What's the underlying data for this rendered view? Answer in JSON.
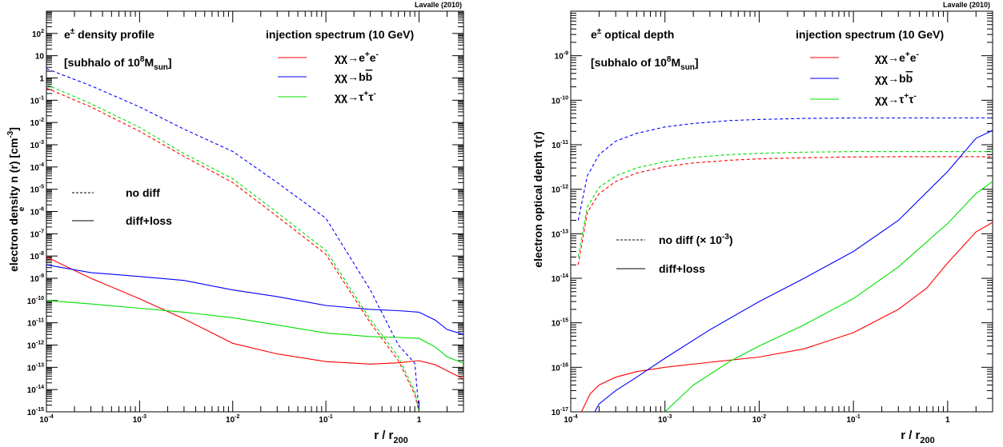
{
  "chart_data": [
    {
      "type": "line",
      "credit": "Lavalle (2010)",
      "xlabel": "r / r",
      "xlabel_sub": "200",
      "ylabel": "electron density  n (r)  [cm",
      "ylabel_sub": "e",
      "ylabel_sup": "-3",
      "ylabel_end": "]",
      "xscale": "log",
      "yscale": "log",
      "xlim": [
        0.0001,
        3
      ],
      "ylim": [
        1e-15,
        1000
      ],
      "x_ticks": [
        0.0001,
        0.001,
        0.01,
        0.1,
        1
      ],
      "x_tick_labels": [
        "10^-4",
        "10^-3",
        "10^-2",
        "10^-1",
        "1"
      ],
      "y_ticks": [
        1e-15,
        1e-14,
        1e-13,
        1e-12,
        1e-11,
        1e-10,
        1e-09,
        1e-08,
        1e-07,
        1e-06,
        1e-05,
        0.0001,
        0.001,
        0.01,
        0.1,
        1,
        10,
        100
      ],
      "y_tick_labels": [
        "10^-15",
        "10^-14",
        "10^-13",
        "10^-12",
        "10^-11",
        "10^-10",
        "10^-9",
        "10^-8",
        "10^-7",
        "10^-6",
        "10^-5",
        "10^-4",
        "10^-3",
        "10^-2",
        "10^-1",
        "1",
        "10",
        "10^2"
      ],
      "title_line1_prefix": "e",
      "title_line1_sup": "±",
      "title_line1_rest": " density profile",
      "title_line2_prefix": "[subhalo of 10",
      "title_line2_sup": "8",
      "title_line2_mid": "M",
      "title_line2_sub": "sun",
      "title_line2_end": "]",
      "legend_title": "injection spectrum (10 GeV)",
      "legend_entries": [
        {
          "color": "#ff0000",
          "label_main": "χχ→e",
          "label_sup1": "+",
          "label_mid": "e",
          "label_sup2": "-"
        },
        {
          "color": "#0000ff",
          "label_main": "χχ→b",
          "label_over": "b"
        },
        {
          "color": "#00e000",
          "label_main": "χχ→τ",
          "label_sup1": "+",
          "label_mid": "τ",
          "label_sup2": "-"
        }
      ],
      "style_legend": [
        {
          "dash": true,
          "label": "no diff"
        },
        {
          "dash": false,
          "label": "diff+loss"
        }
      ],
      "series": [
        {
          "channel": "ee",
          "style": "no diff",
          "color": "#ff0000",
          "dashed": true,
          "x": [
            0.0001,
            0.0003,
            0.001,
            0.003,
            0.01,
            0.03,
            0.1,
            0.3,
            0.6,
            0.9,
            1.0
          ],
          "y": [
            0.35,
            0.05,
            0.004,
            0.0003,
            2e-05,
            6e-07,
            1.2e-08,
            1e-11,
            2e-13,
            6e-15,
            1e-15
          ]
        },
        {
          "channel": "bb",
          "style": "no diff",
          "color": "#0000ff",
          "dashed": true,
          "x": [
            0.0001,
            0.0003,
            0.001,
            0.003,
            0.01,
            0.03,
            0.1,
            0.3,
            0.6,
            0.9,
            1.0
          ],
          "y": [
            2.6,
            0.45,
            0.05,
            0.005,
            0.0005,
            2e-05,
            5e-07,
            3e-10,
            1e-12,
            1.5e-13,
            1e-15
          ]
        },
        {
          "channel": "tautau",
          "style": "no diff",
          "color": "#00e000",
          "dashed": true,
          "x": [
            0.0001,
            0.0003,
            0.001,
            0.003,
            0.01,
            0.03,
            0.1,
            0.3,
            0.6,
            0.9,
            1.0
          ],
          "y": [
            0.5,
            0.07,
            0.006,
            0.0004,
            3e-05,
            9e-07,
            1.8e-08,
            1.4e-11,
            3e-13,
            8e-15,
            1e-15
          ]
        },
        {
          "channel": "ee",
          "style": "diff+loss",
          "color": "#ff0000",
          "dashed": false,
          "x": [
            0.0001,
            0.0003,
            0.001,
            0.003,
            0.01,
            0.03,
            0.1,
            0.3,
            0.6,
            1.0,
            1.5,
            2.0,
            3.0
          ],
          "y": [
            9e-09,
            1e-09,
            1.2e-10,
            1.5e-11,
            1.2e-12,
            4e-13,
            1.8e-13,
            1.4e-13,
            1.6e-13,
            2e-13,
            1.3e-13,
            7e-14,
            3e-14
          ]
        },
        {
          "channel": "bb",
          "style": "diff+loss",
          "color": "#0000ff",
          "dashed": false,
          "x": [
            0.0001,
            0.0003,
            0.001,
            0.003,
            0.01,
            0.03,
            0.1,
            0.3,
            0.6,
            1.0,
            1.5,
            2.0,
            3.0
          ],
          "y": [
            4e-09,
            1.8e-09,
            1.2e-09,
            8e-10,
            3e-10,
            1.5e-10,
            6e-11,
            4e-11,
            3.5e-11,
            3e-11,
            1.3e-11,
            5e-12,
            3e-12
          ]
        },
        {
          "channel": "tautau",
          "style": "diff+loss",
          "color": "#00e000",
          "dashed": false,
          "x": [
            0.0001,
            0.0003,
            0.001,
            0.003,
            0.01,
            0.03,
            0.1,
            0.3,
            0.6,
            1.0,
            1.5,
            2.0,
            3.0
          ],
          "y": [
            1e-10,
            7e-11,
            4.5e-11,
            3e-11,
            1.7e-11,
            8e-12,
            3.5e-12,
            2.4e-12,
            2.2e-12,
            2e-12,
            8e-13,
            3e-13,
            1.5e-13
          ]
        }
      ]
    },
    {
      "type": "line",
      "credit": "Lavalle (2010)",
      "xlabel": "r / r",
      "xlabel_sub": "200",
      "ylabel": "electron optical depth  τ(r)",
      "xscale": "log",
      "yscale": "log",
      "xlim": [
        0.0001,
        3
      ],
      "ylim": [
        1e-17,
        1e-08
      ],
      "x_ticks": [
        0.0001,
        0.001,
        0.01,
        0.1,
        1
      ],
      "x_tick_labels": [
        "10^-4",
        "10^-3",
        "10^-2",
        "10^-1",
        "1"
      ],
      "y_ticks": [
        1e-17,
        1e-16,
        1e-15,
        1e-14,
        1e-13,
        1e-12,
        1e-11,
        1e-10,
        1e-09
      ],
      "y_tick_labels": [
        "10^-17",
        "10^-16",
        "10^-15",
        "10^-14",
        "10^-13",
        "10^-12",
        "10^-11",
        "10^-10",
        "10^-9"
      ],
      "title_line1_prefix": "e",
      "title_line1_sup": "±",
      "title_line1_rest": " optical depth",
      "title_line2_prefix": "[subhalo of 10",
      "title_line2_sup": "8",
      "title_line2_mid": "M",
      "title_line2_sub": "sun",
      "title_line2_end": "]",
      "legend_title": "injection spectrum (10 GeV)",
      "legend_entries": [
        {
          "color": "#ff0000",
          "label_main": "χχ→e",
          "label_sup1": "+",
          "label_mid": "e",
          "label_sup2": "-"
        },
        {
          "color": "#0000ff",
          "label_main": "χχ→b",
          "label_over": "b"
        },
        {
          "color": "#00e000",
          "label_main": "χχ→τ",
          "label_sup1": "+",
          "label_mid": "τ",
          "label_sup2": "-"
        }
      ],
      "style_legend": [
        {
          "dash": true,
          "label": "no diff (× 10",
          "label_sup": "-3",
          "label_end": ")"
        },
        {
          "dash": false,
          "label": "diff+loss"
        }
      ],
      "series": [
        {
          "channel": "ee",
          "style": "no diff",
          "color": "#ff0000",
          "dashed": true,
          "x": [
            0.00012,
            0.00015,
            0.0002,
            0.0003,
            0.0005,
            0.001,
            0.002,
            0.005,
            0.01,
            0.03,
            0.1,
            0.3,
            1.0,
            3.0
          ],
          "y": [
            2e-14,
            3e-13,
            8e-13,
            1.5e-12,
            2.3e-12,
            3.2e-12,
            3.9e-12,
            4.5e-12,
            4.8e-12,
            5.1e-12,
            5.3e-12,
            5.4e-12,
            5.4e-12,
            5.4e-12
          ]
        },
        {
          "channel": "bb",
          "style": "no diff",
          "color": "#0000ff",
          "dashed": true,
          "x": [
            0.00012,
            0.00015,
            0.0002,
            0.0003,
            0.0005,
            0.001,
            0.002,
            0.005,
            0.01,
            0.03,
            0.1,
            0.3,
            1.0,
            3.0
          ],
          "y": [
            2e-13,
            2e-12,
            6e-12,
            1.2e-11,
            1.8e-11,
            2.5e-11,
            3e-11,
            3.5e-11,
            3.7e-11,
            3.9e-11,
            4e-11,
            4e-11,
            4e-11,
            4e-11
          ]
        },
        {
          "channel": "tautau",
          "style": "no diff",
          "color": "#00e000",
          "dashed": true,
          "x": [
            0.00012,
            0.00015,
            0.0002,
            0.0003,
            0.0005,
            0.001,
            0.002,
            0.005,
            0.01,
            0.03,
            0.1,
            0.3,
            1.0,
            3.0
          ],
          "y": [
            3e-14,
            4e-13,
            1.1e-12,
            2e-12,
            3e-12,
            4.2e-12,
            5.2e-12,
            6e-12,
            6.4e-12,
            6.8e-12,
            7e-12,
            7e-12,
            7e-12,
            7e-12
          ]
        },
        {
          "channel": "ee",
          "style": "diff+loss",
          "color": "#ff0000",
          "dashed": false,
          "x": [
            0.00013,
            0.00016,
            0.0002,
            0.0003,
            0.0005,
            0.001,
            0.003,
            0.01,
            0.03,
            0.1,
            0.3,
            0.6,
            1.0,
            2.0,
            3.0
          ],
          "y": [
            1e-17,
            2.5e-17,
            4e-17,
            6e-17,
            8e-17,
            1e-16,
            1.3e-16,
            1.7e-16,
            2.6e-16,
            6e-16,
            2e-15,
            6e-15,
            2.2e-14,
            1.1e-13,
            1.8e-13
          ]
        },
        {
          "channel": "bb",
          "style": "diff+loss",
          "color": "#0000ff",
          "dashed": false,
          "x": [
            0.00018,
            0.0002,
            0.0003,
            0.0005,
            0.001,
            0.003,
            0.01,
            0.03,
            0.1,
            0.3,
            1.0,
            2.0,
            3.0
          ],
          "y": [
            1e-17,
            1.5e-17,
            3e-17,
            6e-17,
            1.6e-16,
            7e-16,
            3e-15,
            1e-14,
            4e-14,
            2e-13,
            2.5e-12,
            1.4e-11,
            2.1e-11
          ]
        },
        {
          "channel": "tautau",
          "style": "diff+loss",
          "color": "#00e000",
          "dashed": false,
          "x": [
            0.001,
            0.002,
            0.005,
            0.01,
            0.03,
            0.1,
            0.3,
            1.0,
            2.0,
            3.0
          ],
          "y": [
            1e-17,
            4e-17,
            1.4e-16,
            3e-16,
            9e-16,
            3.5e-15,
            1.8e-14,
            1.7e-13,
            8e-13,
            1.5e-12
          ]
        }
      ]
    }
  ]
}
